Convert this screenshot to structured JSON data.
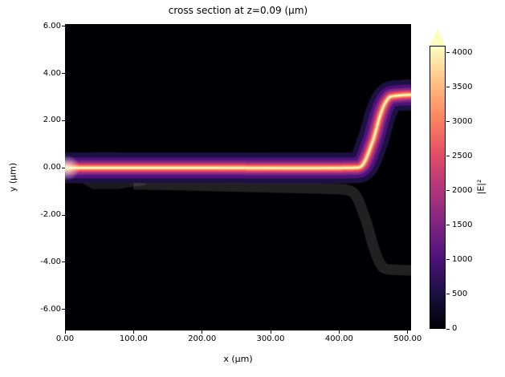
{
  "title": "cross section at z=0.09 (μm)",
  "axes": {
    "xlabel": "x (μm)",
    "ylabel": "y (μm)",
    "x_ticks": [
      {
        "value": 0,
        "label": "0.00"
      },
      {
        "value": 100,
        "label": "100.00"
      },
      {
        "value": 200,
        "label": "200.00"
      },
      {
        "value": 300,
        "label": "300.00"
      },
      {
        "value": 400,
        "label": "400.00"
      },
      {
        "value": 500,
        "label": "500.00"
      }
    ],
    "y_ticks": [
      {
        "value": 6,
        "label": "6.00"
      },
      {
        "value": 4,
        "label": "4.00"
      },
      {
        "value": 2,
        "label": "2.00"
      },
      {
        "value": 0,
        "label": "0.00"
      },
      {
        "value": -2,
        "label": "-2.00"
      },
      {
        "value": -4,
        "label": "-4.00"
      },
      {
        "value": -6,
        "label": "-6.00"
      }
    ]
  },
  "colorbar": {
    "label": "|E|²",
    "vmin": 0,
    "vmax": 4100,
    "extend": "max",
    "colormap": "magma",
    "colormap_stops": [
      "#000004",
      "#1c1044",
      "#4f127b",
      "#812581",
      "#b5367a",
      "#e55064",
      "#fb8761",
      "#fec287",
      "#fcfdbf"
    ],
    "ticks": [
      {
        "value": 0,
        "label": "0"
      },
      {
        "value": 500,
        "label": "500"
      },
      {
        "value": 1000,
        "label": "1000"
      },
      {
        "value": 1500,
        "label": "1500"
      },
      {
        "value": 2000,
        "label": "2000"
      },
      {
        "value": 2500,
        "label": "2500"
      },
      {
        "value": 3000,
        "label": "3000"
      },
      {
        "value": 3500,
        "label": "3500"
      },
      {
        "value": 4000,
        "label": "4000"
      }
    ]
  },
  "chart_data": {
    "type": "heatmap",
    "title": "cross section at z=0.09 (μm)",
    "xlabel": "x (μm)",
    "ylabel": "y (μm)",
    "xlim": [
      0,
      505
    ],
    "ylim": [
      -6.9,
      6.1
    ],
    "colormap": "magma",
    "value_label": "|E|²",
    "value_range": [
      0,
      4100
    ],
    "description": "Optical field intensity |E|² guided along a waveguide: bright beam at y≈0 μm from x=0 to x≈430 μm, then an S-bend up to y≈3.1 μm at the output (x≈480–505 μm). Faint grey overlay shows the waveguide structure: an input taper at the left and an unlit lower arm bending down to y≈-4.35 μm near x≈470 μm.",
    "beam": {
      "peak_intensity": 4000,
      "width_um": 0.5,
      "path": [
        [
          0,
          0
        ],
        [
          200,
          0
        ],
        [
          420,
          0
        ],
        [
          435,
          0.15
        ],
        [
          450,
          1.2
        ],
        [
          462,
          2.4
        ],
        [
          472,
          2.95
        ],
        [
          480,
          3.05
        ],
        [
          505,
          3.1
        ]
      ]
    },
    "structure_overlay": {
      "color": "#ffffff",
      "taper_opacity": 0.1,
      "waveguide_opacity": 0.13,
      "input_taper_polygon": [
        [
          4,
          0.1
        ],
        [
          40,
          0.65
        ],
        [
          78,
          0.65
        ],
        [
          118,
          0.18
        ],
        [
          118,
          -0.72
        ],
        [
          78,
          -0.9
        ],
        [
          40,
          -0.9
        ],
        [
          4,
          -0.3
        ]
      ],
      "upper_waveguide_width_um": 1.3,
      "lower_waveguide_width_um": 0.45,
      "lower_waveguide_path": [
        [
          100,
          -0.7
        ],
        [
          260,
          -0.8
        ],
        [
          410,
          -0.92
        ],
        [
          425,
          -1.2
        ],
        [
          440,
          -2.3
        ],
        [
          452,
          -3.5
        ],
        [
          462,
          -4.15
        ],
        [
          470,
          -4.3
        ],
        [
          505,
          -4.35
        ]
      ]
    }
  }
}
